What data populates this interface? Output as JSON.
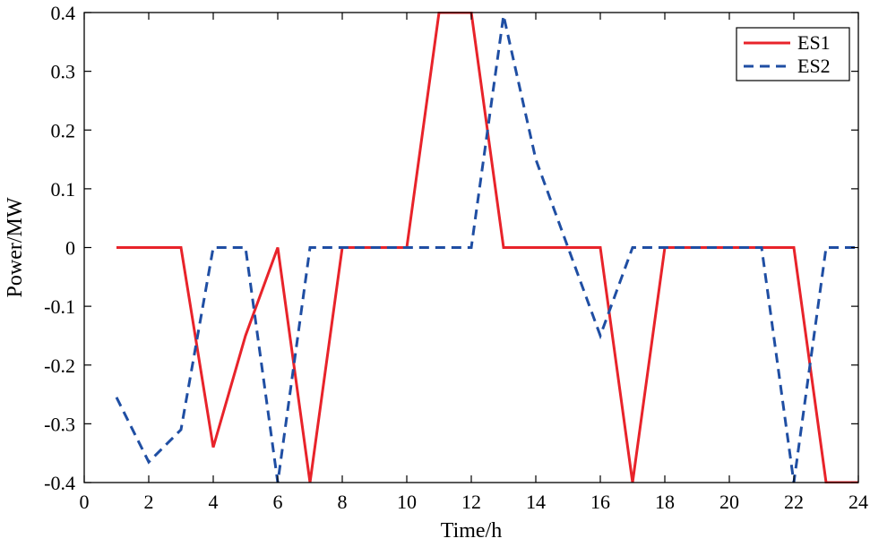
{
  "chart_data": {
    "type": "line",
    "title": "",
    "xlabel": "Time/h",
    "ylabel": "Power/MW",
    "xlim": [
      0,
      24
    ],
    "ylim": [
      -0.4,
      0.4
    ],
    "xticks": [
      0,
      2,
      4,
      6,
      8,
      10,
      12,
      14,
      16,
      18,
      20,
      22,
      24
    ],
    "xtick_labels": [
      "0",
      "2",
      "4",
      "6",
      "8",
      "10",
      "12",
      "14",
      "16",
      "18",
      "20",
      "22",
      "24"
    ],
    "yticks": [
      -0.4,
      -0.3,
      -0.2,
      -0.1,
      0,
      0.1,
      0.2,
      0.3,
      0.4
    ],
    "ytick_labels": [
      "-0.4",
      "-0.3",
      "-0.2",
      "-0.1",
      "0",
      "0.1",
      "0.2",
      "0.3",
      "0.4"
    ],
    "grid": false,
    "legend_position": "top-right",
    "x": [
      1,
      2,
      3,
      4,
      5,
      6,
      7,
      8,
      9,
      10,
      11,
      12,
      13,
      14,
      15,
      16,
      17,
      18,
      19,
      20,
      21,
      22,
      23,
      24
    ],
    "series": [
      {
        "name": "ES1",
        "color": "#e8232a",
        "dash": "solid",
        "values": [
          0,
          0,
          0,
          -0.34,
          -0.15,
          0,
          -0.4,
          0,
          0,
          0,
          0.4,
          0.4,
          0,
          0,
          0,
          0,
          -0.4,
          0,
          0,
          0,
          0,
          0,
          -0.4,
          -0.4
        ]
      },
      {
        "name": "ES2",
        "color": "#1f4ea3",
        "dash": "dashed",
        "values": [
          -0.255,
          -0.365,
          -0.31,
          0,
          0,
          -0.4,
          0,
          0,
          0,
          0,
          0,
          0,
          0.395,
          0.15,
          0,
          -0.15,
          0,
          0,
          0,
          0,
          0,
          -0.4,
          0,
          0
        ]
      }
    ]
  }
}
